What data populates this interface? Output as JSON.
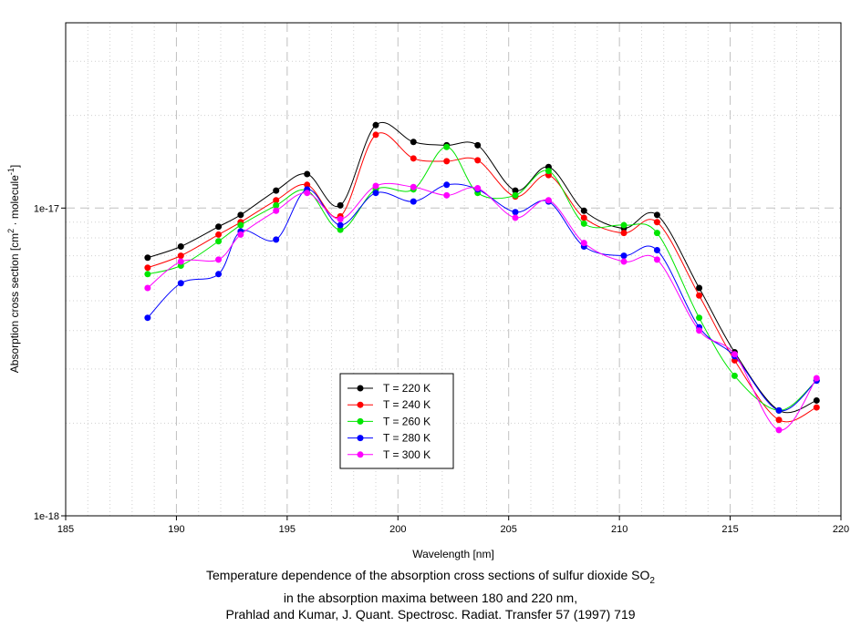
{
  "chart_data": {
    "type": "line",
    "xlabel": "Wavelength [nm]",
    "ylabel": "Absorption cross section [cm2 · molecule-1]",
    "ylabel_parts": {
      "a": "Absorption cross section [cm",
      "b": "2",
      "c": " · molecule",
      "d": "-1",
      "e": "]"
    },
    "xlim": [
      185,
      220
    ],
    "ylim": [
      1e-18,
      4e-17
    ],
    "yscale": "log",
    "x_ticks": [
      "185",
      "190",
      "195",
      "200",
      "205",
      "210",
      "215",
      "220"
    ],
    "y_ticks": [
      "1e-18",
      "1e-17"
    ],
    "grid": true,
    "legend_position": "bottom-center",
    "x": [
      188.7,
      190.2,
      191.9,
      192.9,
      194.5,
      195.9,
      197.4,
      199.0,
      200.7,
      202.2,
      203.6,
      205.3,
      206.8,
      208.4,
      210.2,
      211.7,
      213.6,
      215.2,
      217.2,
      218.9
    ],
    "series": [
      {
        "name": "T = 220 K",
        "color": "#000000",
        "values": [
          6.9e-18,
          7.5e-18,
          8.7e-18,
          9.5e-18,
          1.14e-17,
          1.29e-17,
          1.02e-17,
          1.86e-17,
          1.64e-17,
          1.6e-17,
          1.6e-17,
          1.14e-17,
          1.36e-17,
          9.8e-18,
          8.6e-18,
          9.5e-18,
          5.5e-18,
          3.4e-18,
          2.2e-18,
          2.37e-18
        ]
      },
      {
        "name": "T = 240 K",
        "color": "#ff0000",
        "values": [
          6.4e-18,
          7e-18,
          8.2e-18,
          9e-18,
          1.06e-17,
          1.19e-17,
          9.4e-18,
          1.73e-17,
          1.45e-17,
          1.42e-17,
          1.43e-17,
          1.09e-17,
          1.28e-17,
          9.3e-18,
          8.3e-18,
          9e-18,
          5.2e-18,
          3.2e-18,
          2.05e-18,
          2.25e-18
        ]
      },
      {
        "name": "T = 260 K",
        "color": "#00e600",
        "values": [
          6.1e-18,
          6.5e-18,
          7.8e-18,
          8.8e-18,
          1.02e-17,
          1.14e-17,
          8.5e-18,
          1.15e-17,
          1.15e-17,
          1.58e-17,
          1.12e-17,
          1.1e-17,
          1.32e-17,
          8.9e-18,
          8.8e-18,
          8.3e-18,
          4.4e-18,
          2.85e-18,
          2.2e-18,
          2.75e-18
        ]
      },
      {
        "name": "T = 280 K",
        "color": "#0000ff",
        "values": [
          4.4e-18,
          5.7e-18,
          6.1e-18,
          8.4e-18,
          7.9e-18,
          1.15e-17,
          8.8e-18,
          1.12e-17,
          1.05e-17,
          1.19e-17,
          1.15e-17,
          9.7e-18,
          1.05e-17,
          7.5e-18,
          7e-18,
          7.3e-18,
          4.1e-18,
          3.3e-18,
          2.2e-18,
          2.75e-18
        ]
      },
      {
        "name": "T = 300 K",
        "color": "#ff00ff",
        "values": [
          5.5e-18,
          6.7e-18,
          6.8e-18,
          8.2e-18,
          9.8e-18,
          1.12e-17,
          9.2e-18,
          1.18e-17,
          1.17e-17,
          1.1e-17,
          1.16e-17,
          9.3e-18,
          1.06e-17,
          7.7e-18,
          6.7e-18,
          6.8e-18,
          4e-18,
          3.35e-18,
          1.9e-18,
          2.8e-18
        ]
      }
    ]
  },
  "caption": {
    "line1": "Temperature dependence of the absorption cross sections of sulfur dioxide SO",
    "line1_sub": "2",
    "line2": "in the absorption maxima between 180 and 220 nm,",
    "line3": "Prahlad and Kumar, J. Quant. Spectrosc. Radiat. Transfer 57 (1997) 719"
  }
}
